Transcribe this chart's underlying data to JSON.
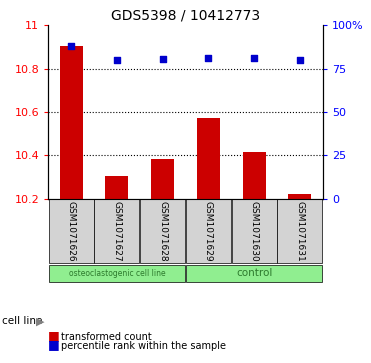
{
  "title": "GDS5398 / 10412773",
  "samples": [
    "GSM1071626",
    "GSM1071627",
    "GSM1071628",
    "GSM1071629",
    "GSM1071630",
    "GSM1071631"
  ],
  "bar_values": [
    10.905,
    10.305,
    10.383,
    10.572,
    10.415,
    10.222
  ],
  "percentile_values": [
    88,
    80,
    80.5,
    81,
    81,
    80
  ],
  "bar_baseline": 10.2,
  "ylim_left": [
    10.2,
    11.0
  ],
  "ylim_right": [
    0,
    100
  ],
  "yticks_left": [
    10.2,
    10.4,
    10.6,
    10.8,
    11.0
  ],
  "ytick_labels_left": [
    "10.2",
    "10.4",
    "10.6",
    "10.8",
    "11"
  ],
  "yticks_right": [
    0,
    25,
    50,
    75,
    100
  ],
  "ytick_labels_right": [
    "0",
    "25",
    "50",
    "75",
    "100%"
  ],
  "bar_color": "#cc0000",
  "dot_color": "#0000cc",
  "cell_line_label": "cell line",
  "legend_bar_label": "transformed count",
  "legend_dot_label": "percentile rank within the sample",
  "grid_color": "black",
  "grid_linewidth": 0.8,
  "bar_width": 0.5,
  "label_box_color": "#d3d3d3",
  "group1_label": "osteoclastogenic cell line",
  "group2_label": "control",
  "group_color": "#90ee90",
  "group_text_color": "#2d7a2d",
  "bg_color": "#ffffff"
}
